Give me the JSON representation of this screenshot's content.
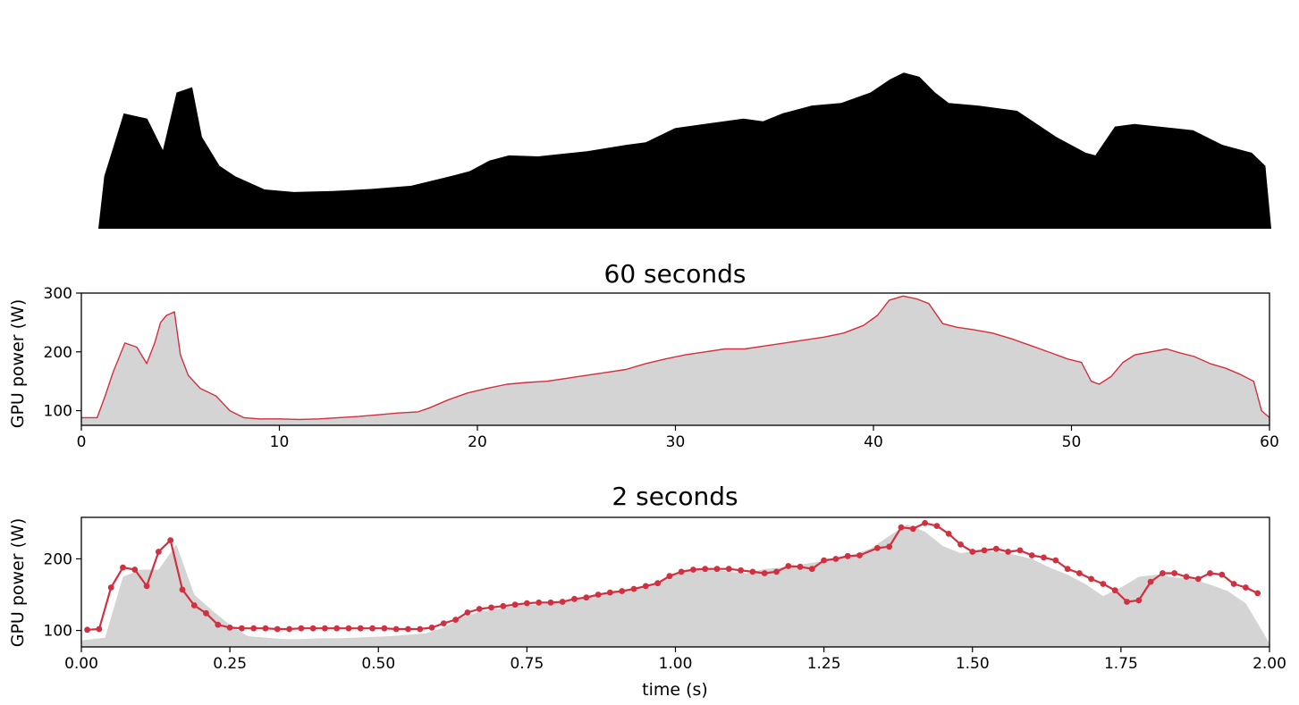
{
  "chart_data": [
    {
      "type": "area",
      "title": "",
      "xlabel": "",
      "ylabel": "",
      "xlim": [
        0,
        60
      ],
      "ylim": [
        0,
        300
      ],
      "axes_visible": false,
      "fill_color": "#000000",
      "x": [
        0,
        0.3,
        1.3,
        2.5,
        3.3,
        4.0,
        4.8,
        5.3,
        6.2,
        7.0,
        8.5,
        10,
        12,
        14,
        16,
        18,
        19,
        20,
        21,
        22.5,
        25,
        27,
        28,
        29.5,
        31,
        33,
        34,
        35,
        36.5,
        38,
        39.5,
        40.5,
        41.2,
        42,
        42.8,
        43.5,
        45,
        47,
        49,
        50.5,
        51,
        52,
        53,
        55,
        56,
        57.5,
        59,
        59.7,
        60
      ],
      "y": [
        0,
        100,
        220,
        210,
        150,
        260,
        270,
        175,
        120,
        100,
        75,
        70,
        72,
        76,
        82,
        100,
        110,
        130,
        140,
        138,
        148,
        160,
        165,
        192,
        200,
        210,
        205,
        220,
        235,
        240,
        260,
        285,
        298,
        290,
        260,
        240,
        235,
        225,
        175,
        145,
        140,
        195,
        200,
        192,
        188,
        160,
        145,
        120,
        0
      ]
    },
    {
      "type": "line",
      "title": "60 seconds",
      "xlabel": "",
      "ylabel": "GPU power (W)",
      "xlim": [
        0,
        60
      ],
      "ylim": [
        75,
        300
      ],
      "x_ticks": [
        "0",
        "10",
        "20",
        "30",
        "40",
        "50",
        "60"
      ],
      "y_ticks": [
        "100",
        "200",
        "300"
      ],
      "grid": false,
      "line_color": "#d03040",
      "fill_color": "#d4d4d4",
      "series": [
        {
          "x": [
            0,
            0.8,
            1.2,
            1.6,
            2.2,
            2.8,
            3.3,
            3.7,
            4.0,
            4.3,
            4.7,
            5.0,
            5.4,
            6.0,
            6.8,
            7.5,
            8.2,
            9,
            10,
            11,
            12,
            13,
            14,
            15,
            16,
            17,
            17.6,
            18.5,
            19.5,
            20.5,
            21.5,
            22.5,
            23.5,
            24.5,
            25.5,
            26.5,
            27.5,
            28.5,
            29.5,
            30.5,
            31.5,
            32.5,
            33.5,
            34.5,
            35.5,
            36.5,
            37.5,
            38.5,
            39.5,
            40.2,
            40.8,
            41.5,
            42.2,
            42.8,
            43.5,
            44.2,
            45,
            46,
            47,
            48,
            49,
            49.8,
            50.5,
            51,
            51.4,
            52,
            52.6,
            53.2,
            54,
            54.8,
            55.5,
            56.2,
            57,
            57.8,
            58.5,
            59.2,
            59.6,
            60
          ],
          "y": [
            88,
            88,
            125,
            165,
            215,
            208,
            180,
            215,
            250,
            262,
            268,
            195,
            160,
            138,
            125,
            100,
            88,
            86,
            86,
            85,
            86,
            88,
            90,
            93,
            96,
            98,
            105,
            118,
            130,
            138,
            145,
            148,
            150,
            155,
            160,
            165,
            170,
            180,
            188,
            195,
            200,
            205,
            205,
            210,
            215,
            220,
            225,
            232,
            245,
            262,
            288,
            295,
            290,
            282,
            248,
            242,
            238,
            232,
            222,
            210,
            198,
            188,
            182,
            150,
            145,
            158,
            182,
            195,
            200,
            205,
            198,
            192,
            180,
            172,
            162,
            150,
            100,
            88
          ]
        }
      ]
    },
    {
      "type": "line",
      "title": "2 seconds",
      "xlabel": "time (s)",
      "ylabel": "GPU power (W)",
      "xlim": [
        0,
        2
      ],
      "ylim": [
        77,
        258
      ],
      "x_ticks": [
        "0.00",
        "0.25",
        "0.50",
        "0.75",
        "1.00",
        "1.25",
        "1.50",
        "1.75",
        "2.00"
      ],
      "y_ticks": [
        "100",
        "200"
      ],
      "grid": false,
      "line_color": "#d03040",
      "marker": "circle",
      "fill_color": "#d4d4d4",
      "series": [
        {
          "x": [
            0.0,
            0.04,
            0.07,
            0.1,
            0.13,
            0.16,
            0.19,
            0.22,
            0.25,
            0.28,
            0.31,
            0.34,
            0.37,
            0.4,
            0.43,
            0.46,
            0.49,
            0.52,
            0.55,
            0.58,
            0.61,
            0.64,
            0.67,
            0.7,
            0.73,
            0.76,
            0.79,
            0.82,
            0.85,
            0.88,
            0.91,
            0.94,
            0.97,
            1.0,
            1.03,
            1.06,
            1.09,
            1.12,
            1.15,
            1.18,
            1.21,
            1.24,
            1.27,
            1.3,
            1.33,
            1.36,
            1.39,
            1.42,
            1.45,
            1.48,
            1.51,
            1.54,
            1.57,
            1.6,
            1.63,
            1.66,
            1.69,
            1.72,
            1.75,
            1.78,
            1.81,
            1.84,
            1.87,
            1.9,
            1.93,
            1.96,
            2.0
          ],
          "y": [
            86,
            90,
            175,
            185,
            185,
            220,
            150,
            128,
            108,
            92,
            90,
            88,
            88,
            89,
            89,
            90,
            91,
            92,
            94,
            96,
            104,
            118,
            126,
            130,
            134,
            136,
            138,
            142,
            148,
            153,
            156,
            160,
            168,
            180,
            186,
            186,
            182,
            180,
            186,
            188,
            192,
            196,
            200,
            206,
            215,
            232,
            248,
            238,
            218,
            208,
            212,
            210,
            206,
            200,
            188,
            178,
            165,
            148,
            160,
            175,
            178,
            174,
            172,
            164,
            155,
            138,
            82
          ]
        },
        {
          "x": [
            0.01,
            0.03,
            0.05,
            0.07,
            0.09,
            0.11,
            0.13,
            0.15,
            0.17,
            0.19,
            0.21,
            0.23,
            0.25,
            0.27,
            0.29,
            0.31,
            0.33,
            0.35,
            0.37,
            0.39,
            0.41,
            0.43,
            0.45,
            0.47,
            0.49,
            0.51,
            0.53,
            0.55,
            0.57,
            0.59,
            0.61,
            0.63,
            0.65,
            0.67,
            0.69,
            0.71,
            0.73,
            0.75,
            0.77,
            0.79,
            0.81,
            0.83,
            0.85,
            0.87,
            0.89,
            0.91,
            0.93,
            0.95,
            0.97,
            0.99,
            1.01,
            1.03,
            1.05,
            1.07,
            1.09,
            1.11,
            1.13,
            1.15,
            1.17,
            1.19,
            1.21,
            1.23,
            1.25,
            1.27,
            1.29,
            1.31,
            1.34,
            1.36,
            1.38,
            1.4,
            1.42,
            1.44,
            1.46,
            1.48,
            1.5,
            1.52,
            1.54,
            1.56,
            1.58,
            1.6,
            1.62,
            1.64,
            1.66,
            1.68,
            1.7,
            1.72,
            1.74,
            1.76,
            1.78,
            1.8,
            1.82,
            1.84,
            1.86,
            1.88,
            1.9,
            1.92,
            1.94,
            1.96,
            1.98
          ],
          "y": [
            101,
            102,
            160,
            188,
            185,
            162,
            210,
            226,
            157,
            135,
            124,
            108,
            104,
            103,
            103,
            103,
            102,
            102,
            103,
            103,
            103,
            103,
            103,
            103,
            103,
            103,
            102,
            102,
            102,
            104,
            110,
            115,
            125,
            130,
            132,
            134,
            136,
            138,
            139,
            139,
            140,
            144,
            146,
            150,
            153,
            155,
            158,
            162,
            166,
            176,
            182,
            185,
            186,
            186,
            186,
            184,
            182,
            180,
            182,
            190,
            189,
            186,
            198,
            200,
            204,
            205,
            215,
            217,
            244,
            242,
            250,
            246,
            235,
            220,
            210,
            212,
            214,
            210,
            212,
            205,
            202,
            198,
            186,
            180,
            172,
            165,
            156,
            140,
            142,
            168,
            180,
            180,
            175,
            172,
            180,
            178,
            165,
            160,
            152
          ]
        }
      ]
    }
  ]
}
